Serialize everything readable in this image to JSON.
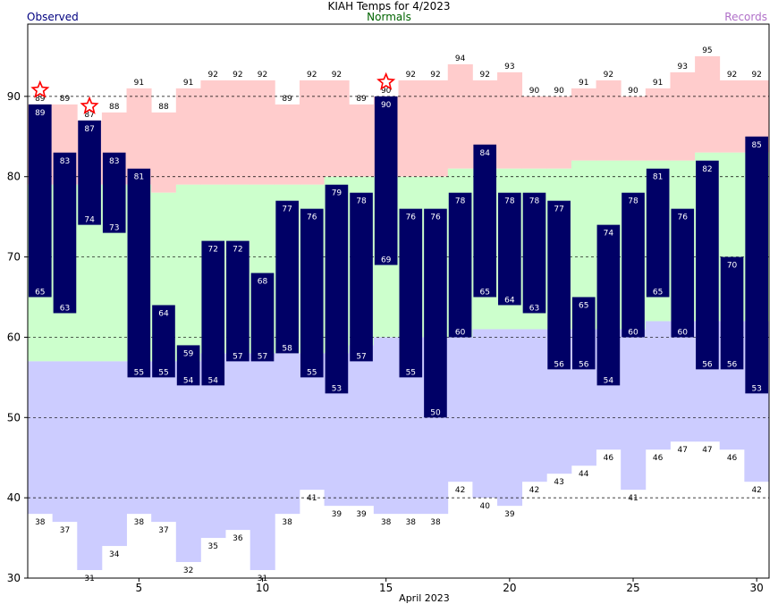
{
  "chart_data": {
    "type": "bar",
    "title": "KIAH Temps for 4/2023",
    "legend": {
      "observed": "Observed",
      "normals": "Normals",
      "records": "Records"
    },
    "xlabel": "April 2023",
    "days": [
      1,
      2,
      3,
      4,
      5,
      6,
      7,
      8,
      9,
      10,
      11,
      12,
      13,
      14,
      15,
      16,
      17,
      18,
      19,
      20,
      21,
      22,
      23,
      24,
      25,
      26,
      27,
      28,
      29,
      30
    ],
    "xticks": [
      5,
      10,
      15,
      20,
      25,
      30
    ],
    "ylim": [
      30,
      99
    ],
    "yticks": [
      30,
      40,
      50,
      60,
      70,
      80,
      90
    ],
    "grid_lines": [
      40,
      50,
      60,
      70,
      80,
      90
    ],
    "observed_high": [
      89,
      83,
      87,
      83,
      81,
      64,
      59,
      72,
      72,
      68,
      77,
      76,
      79,
      78,
      90,
      76,
      76,
      78,
      84,
      78,
      78,
      77,
      65,
      74,
      78,
      81,
      76,
      82,
      70,
      85
    ],
    "observed_low": [
      65,
      63,
      74,
      73,
      55,
      55,
      54,
      54,
      57,
      57,
      58,
      55,
      53,
      57,
      69,
      55,
      50,
      60,
      65,
      64,
      63,
      56,
      56,
      54,
      60,
      65,
      60,
      56,
      56,
      53
    ],
    "normal_high": [
      79,
      79,
      79,
      79,
      79,
      78,
      79,
      79,
      79,
      79,
      79,
      79,
      80,
      80,
      80,
      80,
      80,
      81,
      81,
      81,
      81,
      81,
      82,
      82,
      82,
      82,
      82,
      83,
      83,
      83
    ],
    "normal_low": [
      57,
      57,
      57,
      57,
      57,
      57,
      57,
      58,
      58,
      58,
      58,
      58,
      58,
      59,
      60,
      60,
      60,
      60,
      61,
      61,
      61,
      61,
      61,
      61,
      61,
      62,
      62,
      62,
      62,
      62
    ],
    "record_high": [
      89,
      89,
      87,
      88,
      91,
      88,
      91,
      92,
      92,
      92,
      89,
      92,
      92,
      89,
      90,
      92,
      92,
      94,
      92,
      93,
      90,
      90,
      91,
      92,
      90,
      91,
      93,
      95,
      92,
      92
    ],
    "record_low": [
      38,
      37,
      31,
      34,
      38,
      37,
      32,
      35,
      36,
      31,
      38,
      41,
      39,
      39,
      38,
      38,
      38,
      42,
      40,
      39,
      42,
      43,
      44,
      46,
      41,
      46,
      47,
      47,
      46,
      42
    ],
    "record_set_days": [
      1,
      3,
      15
    ],
    "colors": {
      "observed": "#000066",
      "record_high_band": "#ffcccc",
      "normal_band": "#ccffcc",
      "record_low_band": "#ccccff",
      "record_star": "#ff0000",
      "grid": "#000000"
    }
  }
}
